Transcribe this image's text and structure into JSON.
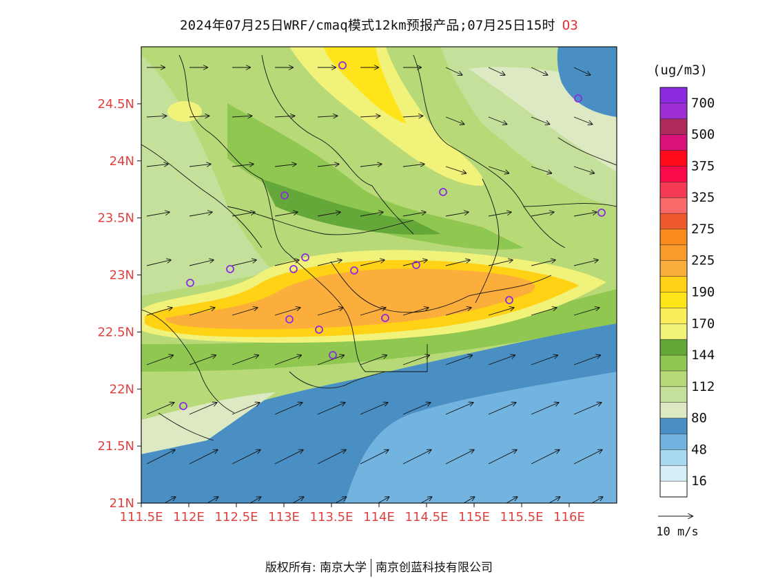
{
  "title": {
    "text": "2024年07月25日WRF/cmaq模式12km预报产品;07月25日15时",
    "pollutant": "O3"
  },
  "axes": {
    "lat_labels": [
      "21N",
      "21.5N",
      "22N",
      "22.5N",
      "23N",
      "23.5N",
      "24N",
      "24.5N"
    ],
    "lat_values": [
      21,
      21.5,
      22,
      22.5,
      23,
      23.5,
      24,
      24.5
    ],
    "lon_labels": [
      "111.5E",
      "112E",
      "112.5E",
      "113E",
      "113.5E",
      "114E",
      "114.5E",
      "115E",
      "115.5E",
      "116E"
    ],
    "lon_values": [
      111.5,
      112,
      112.5,
      113,
      113.5,
      114,
      114.5,
      115,
      115.5,
      116
    ],
    "lat_range": [
      21,
      25
    ],
    "lon_range": [
      111.5,
      116.5
    ]
  },
  "legend": {
    "unit": "(ug/m3)",
    "bins": [
      {
        "label": "",
        "color": "#ffffff"
      },
      {
        "label": "16",
        "color": "#d6eef8"
      },
      {
        "label": "",
        "color": "#a9d8f2"
      },
      {
        "label": "48",
        "color": "#72b3df"
      },
      {
        "label": "",
        "color": "#4a8fc4"
      },
      {
        "label": "80",
        "color": "#dde9c2"
      },
      {
        "label": "",
        "color": "#c5e09a"
      },
      {
        "label": "112",
        "color": "#b7d977"
      },
      {
        "label": "",
        "color": "#8fc751"
      },
      {
        "label": "144",
        "color": "#64a83a"
      },
      {
        "label": "",
        "color": "#f1f27a"
      },
      {
        "label": "170",
        "color": "#fbec5a"
      },
      {
        "label": "",
        "color": "#ffe41a"
      },
      {
        "label": "190",
        "color": "#ffd215"
      },
      {
        "label": "",
        "color": "#fbae3c"
      },
      {
        "label": "225",
        "color": "#f99a2c"
      },
      {
        "label": "",
        "color": "#f98b1c"
      },
      {
        "label": "275",
        "color": "#ef5a2d"
      },
      {
        "label": "",
        "color": "#fb6a6a"
      },
      {
        "label": "325",
        "color": "#f43a55"
      },
      {
        "label": "",
        "color": "#fa0a4a"
      },
      {
        "label": "375",
        "color": "#ff0a1a"
      },
      {
        "label": "",
        "color": "#d8127a"
      },
      {
        "label": "500",
        "color": "#ad2a5a"
      },
      {
        "label": "",
        "color": "#9f2fd5"
      },
      {
        "label": "700",
        "color": "#8a2be2"
      }
    ],
    "wind_scale_label": "10 m/s"
  },
  "stations_color": "#8a2be2",
  "footer": {
    "left": "版权所有: 南京大学",
    "right": "南京创蓝科技有限公司"
  }
}
